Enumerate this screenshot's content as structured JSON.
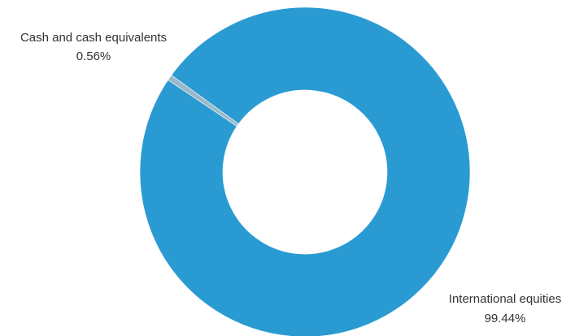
{
  "chart_data": {
    "type": "pie",
    "variant": "donut",
    "title": "",
    "slices": [
      {
        "label": "International equities",
        "value": 99.44,
        "display": "99.44%",
        "color": "#2A9BD2",
        "label_position": "bottom-right"
      },
      {
        "label": "Cash and cash equivalents",
        "value": 0.56,
        "display": "0.56%",
        "color": "#9BB8C8",
        "label_position": "top-left"
      }
    ],
    "legend": "none",
    "background": "#FFFFFF"
  }
}
